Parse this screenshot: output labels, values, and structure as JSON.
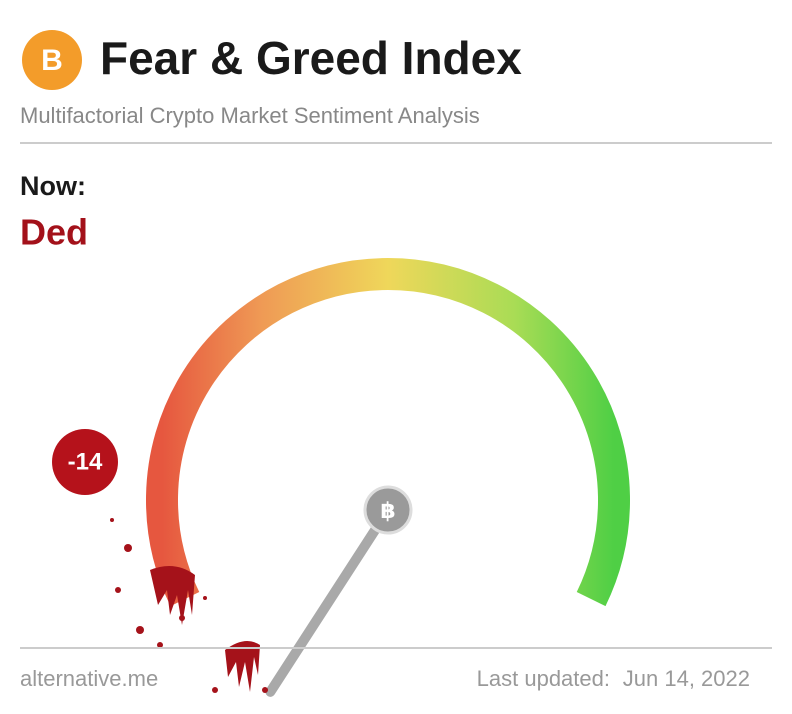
{
  "header": {
    "title": "Fear & Greed Index",
    "subtitle": "Multifactorial Crypto Market Sentiment Analysis"
  },
  "status": {
    "label": "Now:",
    "classification": "Ded"
  },
  "gauge": {
    "value": -14,
    "range": [
      0,
      100
    ]
  },
  "footer": {
    "source": "alternative.me",
    "updated_label": "Last updated:",
    "date": "Jun 14, 2022"
  }
}
